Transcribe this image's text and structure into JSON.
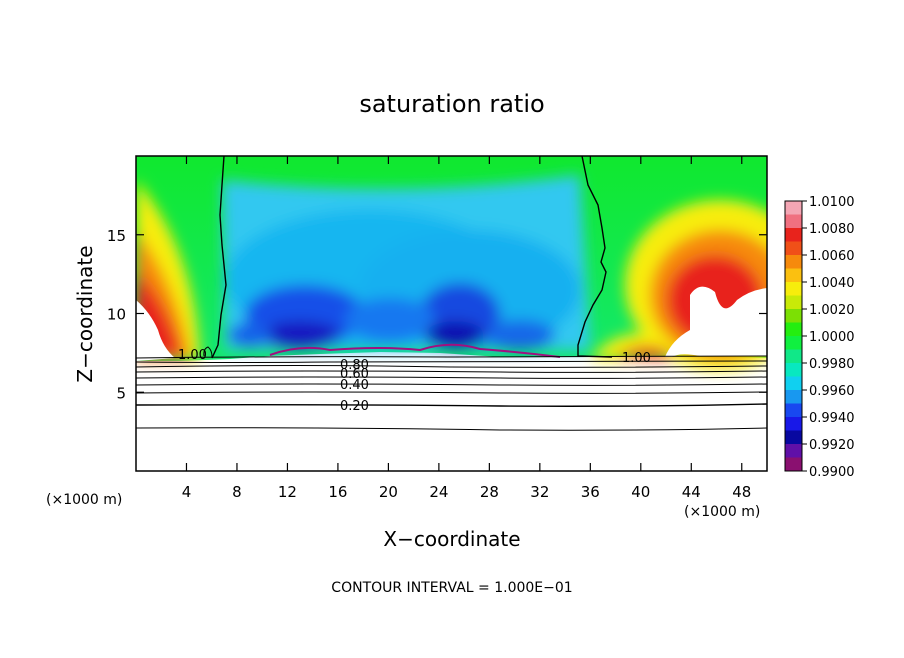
{
  "chart_data": {
    "type": "contour",
    "title": "saturation ratio",
    "xlabel": "X−coordinate",
    "ylabel": "Z−coordinate",
    "x_unit": "(×1000 m)",
    "xlim": [
      0,
      50
    ],
    "ylim": [
      0,
      20
    ],
    "x_ticks": [
      4,
      8,
      12,
      16,
      20,
      24,
      28,
      32,
      36,
      40,
      44,
      48
    ],
    "y_ticks": [
      5,
      10,
      15
    ],
    "footer": "CONTOUR INTERVAL = 1.000E−01",
    "colorbar": {
      "min": 0.99,
      "max": 1.01,
      "labels": [
        "1.0100",
        "1.0080",
        "1.0060",
        "1.0040",
        "1.0020",
        "1.0000",
        "0.9980",
        "0.9960",
        "0.9940",
        "0.9920",
        "0.9900"
      ],
      "colors": [
        "#f4a6b4",
        "#f07080",
        "#e8231c",
        "#f05018",
        "#f68a0c",
        "#fbc010",
        "#f7ed0c",
        "#c8ea08",
        "#7ce004",
        "#24ee10",
        "#10f040",
        "#10e888",
        "#08e8c0",
        "#10d0f0",
        "#1898f0",
        "#1848f0",
        "#1818e8",
        "#0808a0",
        "#6010a8",
        "#8a1070"
      ]
    },
    "contour_labels": [
      {
        "text": "1.00",
        "x": 5.0,
        "z": 7.4
      },
      {
        "text": "1.00",
        "x": 39.2,
        "z": 7.2
      },
      {
        "text": "0.80",
        "x": 17.5,
        "z": 6.8
      },
      {
        "text": "0.60",
        "x": 17.5,
        "z": 6.2
      },
      {
        "text": "0.40",
        "x": 17.5,
        "z": 5.3
      },
      {
        "text": "0.20",
        "x": 17.5,
        "z": 3.9
      }
    ]
  }
}
